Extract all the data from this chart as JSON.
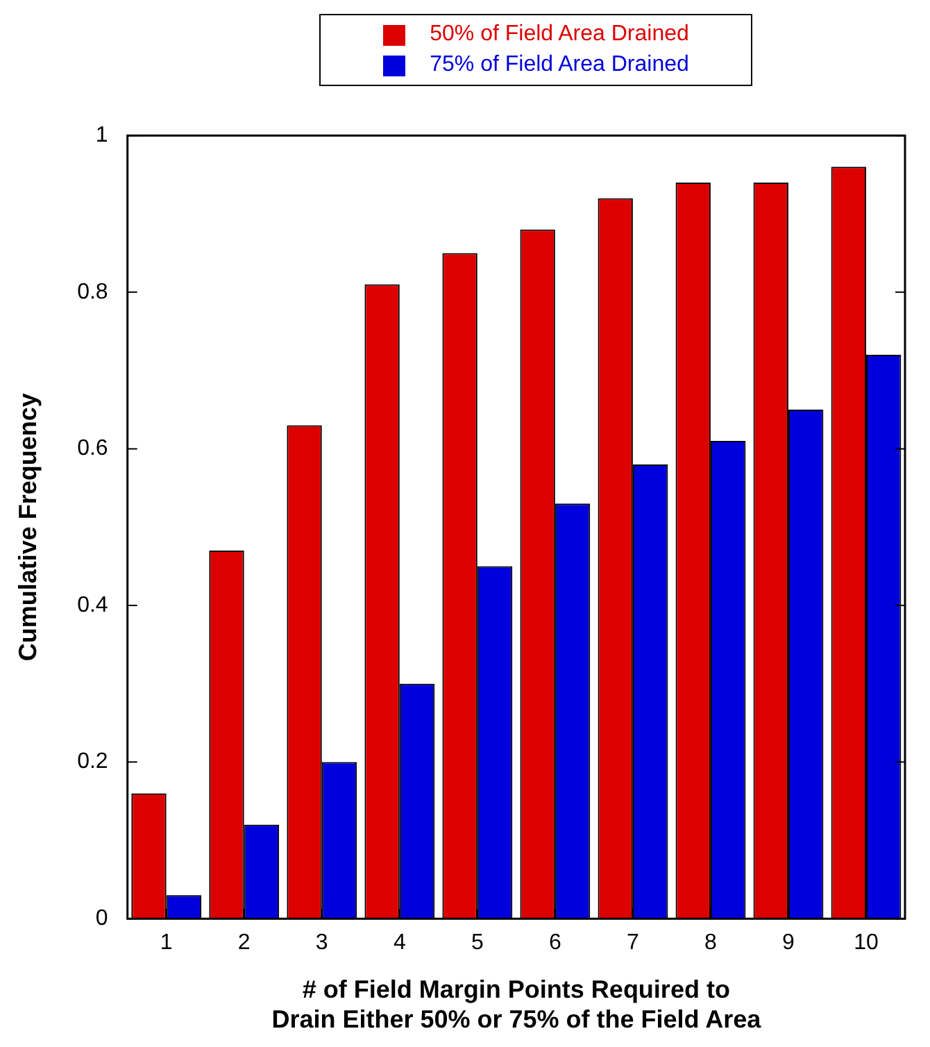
{
  "chart_data": {
    "type": "bar",
    "xlabel": "# of Field Margin Points Required to\nDrain Either 50% or 75% of the Field Area",
    "ylabel": "Cumulative Frequency",
    "categories": [
      "1",
      "2",
      "3",
      "4",
      "5",
      "6",
      "7",
      "8",
      "9",
      "10"
    ],
    "series": [
      {
        "name": "50% of Field Area Drained",
        "color": "#dd0000",
        "values": [
          0.16,
          0.47,
          0.63,
          0.81,
          0.85,
          0.88,
          0.92,
          0.94,
          0.94,
          0.96
        ]
      },
      {
        "name": "75% of Field Area Drained",
        "color": "#0000dd",
        "values": [
          0.03,
          0.12,
          0.2,
          0.3,
          0.45,
          0.53,
          0.58,
          0.61,
          0.65,
          0.72
        ]
      }
    ],
    "ylim": [
      0,
      1
    ],
    "yticks": [
      0,
      0.2,
      0.4,
      0.6,
      0.8,
      1
    ],
    "grid": false,
    "legend": "top"
  }
}
